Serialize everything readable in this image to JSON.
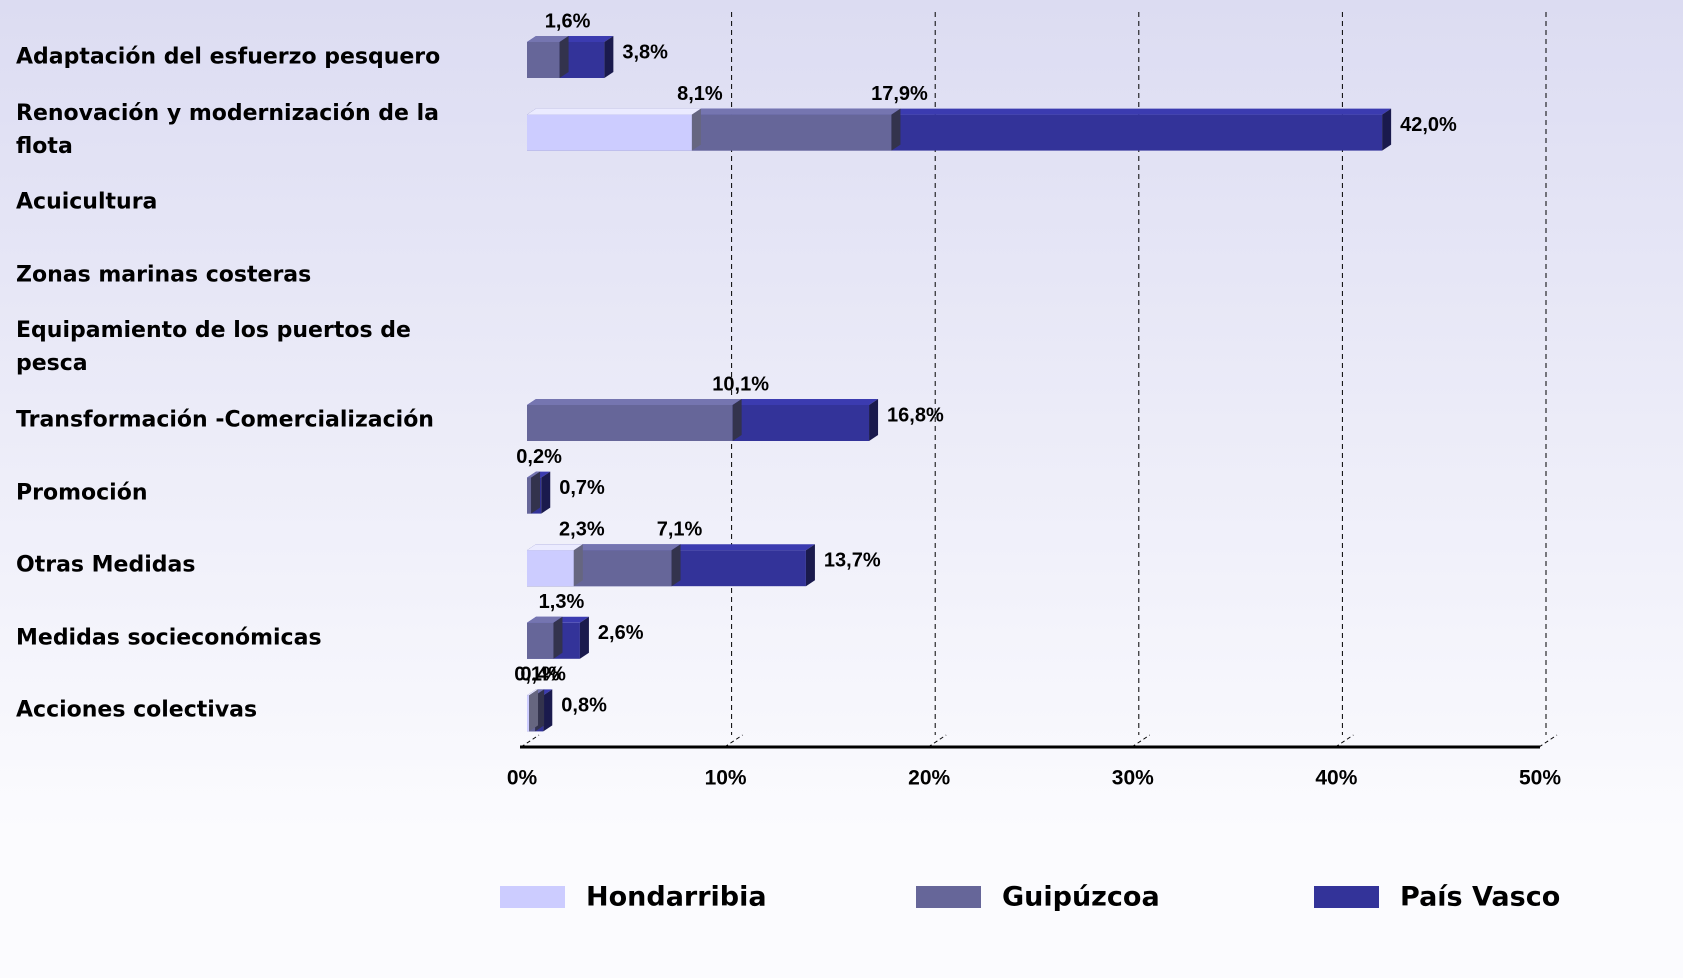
{
  "chart_data": {
    "type": "bar",
    "orientation": "horizontal",
    "categories": [
      "Adaptación del esfuerzo pesquero",
      "Renovación y modernización de la flota",
      "Acuicultura",
      "Zonas marinas costeras",
      "Equipamiento de los puertos de pesca",
      "Transformación -Comercialización",
      "Promoción",
      "Otras Medidas",
      "Medidas socieconómicas",
      "Acciones colectivas"
    ],
    "series": [
      {
        "name": "Hondarribia",
        "color": "#ccccff",
        "values": [
          null,
          8.1,
          null,
          null,
          null,
          null,
          null,
          2.3,
          null,
          0.1
        ],
        "value_labels": [
          null,
          "8,1%",
          null,
          null,
          null,
          null,
          null,
          "2,3%",
          null,
          "0,1%"
        ]
      },
      {
        "name": "Guipúzcoa",
        "color": "#666699",
        "values": [
          1.6,
          17.9,
          null,
          null,
          null,
          10.1,
          0.2,
          7.1,
          1.3,
          0.4
        ],
        "value_labels": [
          "1,6%",
          "17,9%",
          null,
          null,
          null,
          "10,1%",
          "0,2%",
          "7,1%",
          "1,3%",
          "0,4%"
        ]
      },
      {
        "name": "País Vasco",
        "color": "#333399",
        "values": [
          3.8,
          42.0,
          null,
          null,
          null,
          16.8,
          0.7,
          13.7,
          2.6,
          0.8
        ],
        "value_labels": [
          "3,8%",
          "42,0%",
          null,
          null,
          null,
          "16,8%",
          "0,7%",
          "13,7%",
          "2,6%",
          "0,8%"
        ]
      }
    ],
    "xlim": [
      0,
      50
    ],
    "xticks": [
      {
        "value": 0,
        "label": "0%"
      },
      {
        "value": 10,
        "label": "10%"
      },
      {
        "value": 20,
        "label": "20%"
      },
      {
        "value": 30,
        "label": "30%"
      },
      {
        "value": 40,
        "label": "40%"
      },
      {
        "value": 50,
        "label": "50%"
      }
    ],
    "grid": true,
    "legend": "bottom"
  }
}
